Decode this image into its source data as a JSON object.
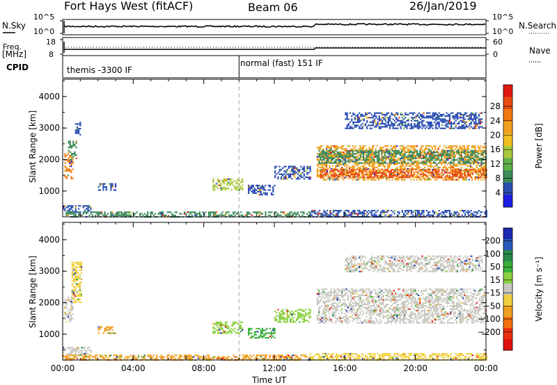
{
  "header": {
    "station": "Fort Hays West (fitACF)",
    "beam": "Beam 06",
    "date": "26/Jan/2019"
  },
  "panels": {
    "nsky_label": "N.Sky",
    "nsearch_label": "N.Search",
    "nsky_ticks": [
      "10^5",
      "10^0"
    ],
    "nsearch_ticks": [
      "10^5",
      "10^0"
    ],
    "freq_label_line1": "Freq.",
    "freq_label_line2": "[MHz]",
    "freq_ticks": [
      "18",
      "8"
    ],
    "nave_label": "Nave",
    "nave_ticks": [
      "60",
      "0"
    ],
    "cpid_label": "CPID",
    "cpid_segments": [
      {
        "label": "themis -3300 IF",
        "start_hour": 0
      },
      {
        "label": "normal (fast) 151 IF",
        "start_hour": 10
      }
    ]
  },
  "chart_data": [
    {
      "type": "heatmap",
      "quantity": "Power",
      "ylabel": "Slant Range [km]",
      "xlabel": "Time UT",
      "xlim_hours": [
        0,
        24
      ],
      "x_ticks": [
        "00:00",
        "04:00",
        "08:00",
        "12:00",
        "16:00",
        "20:00",
        "00:00"
      ],
      "ylim": [
        180,
        4550
      ],
      "y_ticks": [
        1000,
        2000,
        3000,
        4000
      ],
      "colorbar": {
        "label": "Power [dB]",
        "ticks": [
          "4",
          "8",
          "12",
          "16",
          "20",
          "24",
          "28"
        ],
        "colors": [
          "#1e1ee6",
          "#2a4fb0",
          "#3d8a5a",
          "#5fb04a",
          "#a8c83a",
          "#f0c020",
          "#f0a020",
          "#f07a10",
          "#e84a10",
          "#e01a10"
        ]
      },
      "regions": [
        {
          "t": [
            0.1,
            0.6
          ],
          "r": [
            1400,
            2200
          ],
          "color": "#f07a10"
        },
        {
          "t": [
            0.3,
            0.8
          ],
          "r": [
            2000,
            2600
          ],
          "color": "#3d8a5a"
        },
        {
          "t": [
            0.7,
            1.0
          ],
          "r": [
            2800,
            3200
          ],
          "color": "#2a4fb0"
        },
        {
          "t": [
            0.0,
            1.6
          ],
          "r": [
            350,
            550
          ],
          "color": "#2a4fb0"
        },
        {
          "t": [
            2.0,
            3.0
          ],
          "r": [
            1050,
            1250
          ],
          "color": "#2a4fb0"
        },
        {
          "t": [
            0.0,
            14.0
          ],
          "r": [
            200,
            350
          ],
          "color": "#3d8a5a"
        },
        {
          "t": [
            8.5,
            10.2
          ],
          "r": [
            1050,
            1400
          ],
          "color": "#a8c83a"
        },
        {
          "t": [
            10.5,
            12.0
          ],
          "r": [
            900,
            1200
          ],
          "color": "#2a4fb0"
        },
        {
          "t": [
            12.0,
            14.0
          ],
          "r": [
            1400,
            1800
          ],
          "color": "#2a4fb0"
        },
        {
          "t": [
            14.4,
            24.0
          ],
          "r": [
            1350,
            2450
          ],
          "color": "#f0a020"
        },
        {
          "t": [
            14.6,
            24.0
          ],
          "r": [
            1450,
            1700
          ],
          "color": "#e84a10"
        },
        {
          "t": [
            14.5,
            24.0
          ],
          "r": [
            1900,
            2300
          ],
          "color": "#3d8a5a"
        },
        {
          "t": [
            16.0,
            23.8
          ],
          "r": [
            3000,
            3500
          ],
          "color": "#2a4fb0"
        },
        {
          "t": [
            14.0,
            24.0
          ],
          "r": [
            200,
            400
          ],
          "color": "#2a4fb0"
        }
      ]
    },
    {
      "type": "heatmap",
      "quantity": "Velocity",
      "ylabel": "Slant Range [km]",
      "xlabel": "Time UT",
      "xlim_hours": [
        0,
        24
      ],
      "x_ticks": [
        "00:00",
        "04:00",
        "08:00",
        "12:00",
        "16:00",
        "20:00",
        "00:00"
      ],
      "ylim": [
        180,
        4550
      ],
      "y_ticks": [
        1000,
        2000,
        3000,
        4000
      ],
      "colorbar": {
        "label": "Velocity [m s⁻¹]",
        "ticks": [
          "200",
          "100",
          "50",
          "15",
          "−15",
          "−50",
          "−100",
          "−200"
        ],
        "colors": [
          "#1a2ab0",
          "#2a5ab8",
          "#2a8a4a",
          "#3ab03a",
          "#8ad040",
          "#c8c8c0",
          "#f0d040",
          "#f0a020",
          "#f07010",
          "#e83010",
          "#e01010"
        ]
      },
      "regions": [
        {
          "t": [
            0.1,
            0.6
          ],
          "r": [
            1400,
            2200
          ],
          "color": "#c8c8c0"
        },
        {
          "t": [
            0.5,
            1.1
          ],
          "r": [
            2000,
            3300
          ],
          "color": "#f0d040"
        },
        {
          "t": [
            0.0,
            1.6
          ],
          "r": [
            350,
            600
          ],
          "color": "#c8c8c0"
        },
        {
          "t": [
            2.0,
            3.0
          ],
          "r": [
            1050,
            1250
          ],
          "color": "#f0a020"
        },
        {
          "t": [
            0.0,
            14.0
          ],
          "r": [
            200,
            350
          ],
          "color": "#f0a020"
        },
        {
          "t": [
            8.5,
            10.2
          ],
          "r": [
            1050,
            1400
          ],
          "color": "#8ad040"
        },
        {
          "t": [
            10.5,
            12.0
          ],
          "r": [
            900,
            1200
          ],
          "color": "#3ab03a"
        },
        {
          "t": [
            12.0,
            14.0
          ],
          "r": [
            1400,
            1800
          ],
          "color": "#8ad040"
        },
        {
          "t": [
            14.4,
            24.0
          ],
          "r": [
            1350,
            2450
          ],
          "color": "#c8c8c0"
        },
        {
          "t": [
            16.0,
            23.8
          ],
          "r": [
            3000,
            3500
          ],
          "color": "#c8c8c0"
        },
        {
          "t": [
            14.0,
            24.0
          ],
          "r": [
            200,
            400
          ],
          "color": "#f0d040"
        }
      ]
    }
  ]
}
